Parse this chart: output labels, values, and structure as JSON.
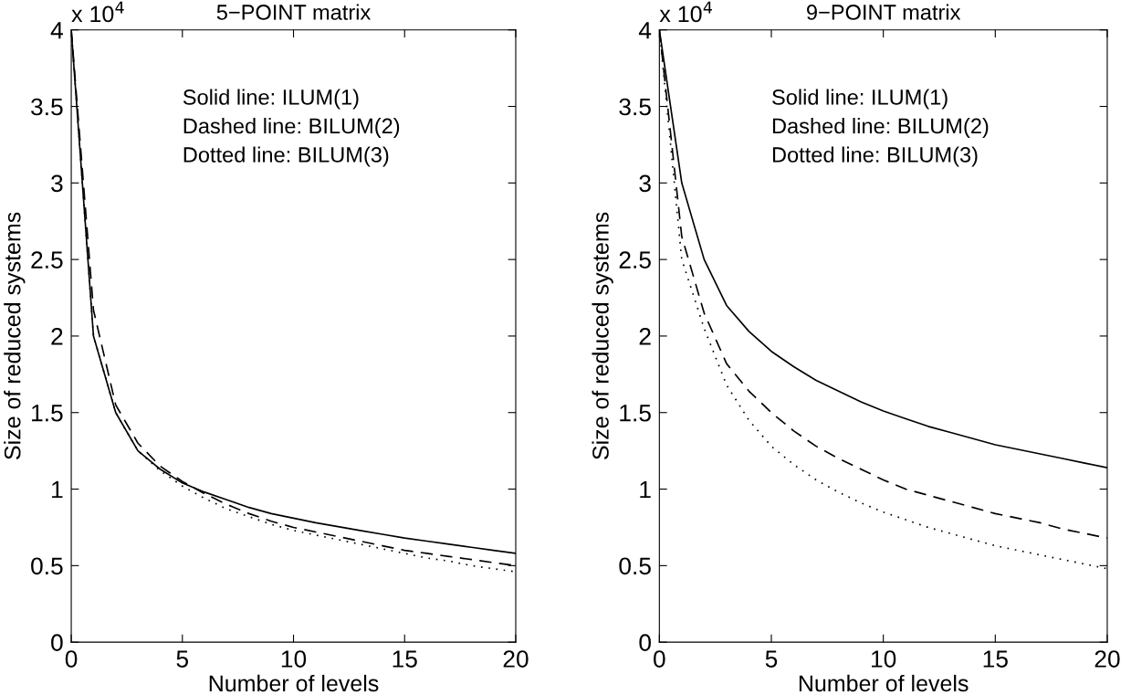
{
  "chart_data": [
    {
      "type": "line",
      "title": "5−POINT matrix",
      "xlabel": "Number of levels",
      "ylabel": "Size of reduced systems",
      "x": [
        0,
        1,
        2,
        3,
        4,
        5,
        6,
        7,
        8,
        9,
        10,
        11,
        12,
        13,
        14,
        15,
        16,
        17,
        18,
        19,
        20
      ],
      "series": [
        {
          "color": "#000000",
          "line_style": "solid",
          "values": [
            4.0,
            2.0,
            1.5,
            1.25,
            1.13,
            1.04,
            0.98,
            0.93,
            0.88,
            0.84,
            0.81,
            0.78,
            0.755,
            0.73,
            0.705,
            0.68,
            0.66,
            0.64,
            0.62,
            0.6,
            0.58
          ]
        },
        {
          "color": "#000000",
          "line_style": "dashed",
          "values": [
            4.0,
            2.17,
            1.55,
            1.3,
            1.15,
            1.05,
            0.97,
            0.9,
            0.84,
            0.79,
            0.75,
            0.72,
            0.69,
            0.66,
            0.63,
            0.6,
            0.58,
            0.56,
            0.54,
            0.52,
            0.5
          ]
        },
        {
          "color": "#000000",
          "line_style": "dotted",
          "values": [
            4.0,
            2.0,
            1.5,
            1.25,
            1.12,
            1.02,
            0.94,
            0.87,
            0.82,
            0.77,
            0.73,
            0.7,
            0.67,
            0.64,
            0.61,
            0.58,
            0.55,
            0.53,
            0.5,
            0.48,
            0.46
          ]
        }
      ],
      "xlim": [
        0,
        20
      ],
      "xticks": [
        0,
        5,
        10,
        15,
        20
      ],
      "ylim": [
        0,
        4
      ],
      "yticks": [
        0,
        0.5,
        1,
        1.5,
        2,
        2.5,
        3,
        3.5,
        4
      ],
      "grid": false,
      "annotations": [
        "x 10$^{4}$",
        "Solid line: ILUM(1)",
        "Dashed line: BILUM(2)",
        "Dotted line: BILUM(3)"
      ]
    },
    {
      "type": "line",
      "title": "9−POINT matrix",
      "xlabel": "Number of levels",
      "ylabel": "Size of reduced systems",
      "x": [
        0,
        1,
        2,
        3,
        4,
        5,
        6,
        7,
        8,
        9,
        10,
        11,
        12,
        13,
        14,
        15,
        16,
        17,
        18,
        19,
        20
      ],
      "series": [
        {
          "color": "#000000",
          "line_style": "solid",
          "values": [
            4.0,
            3.0,
            2.5,
            2.2,
            2.03,
            1.9,
            1.8,
            1.71,
            1.64,
            1.57,
            1.51,
            1.46,
            1.41,
            1.37,
            1.33,
            1.29,
            1.26,
            1.23,
            1.2,
            1.17,
            1.14
          ]
        },
        {
          "color": "#000000",
          "line_style": "dashed",
          "values": [
            4.0,
            2.65,
            2.15,
            1.82,
            1.64,
            1.5,
            1.38,
            1.28,
            1.2,
            1.13,
            1.06,
            1.0,
            0.96,
            0.92,
            0.88,
            0.84,
            0.81,
            0.78,
            0.74,
            0.71,
            0.68
          ]
        },
        {
          "color": "#000000",
          "line_style": "dotted",
          "values": [
            4.0,
            2.5,
            2.05,
            1.68,
            1.45,
            1.28,
            1.16,
            1.06,
            0.98,
            0.91,
            0.85,
            0.8,
            0.75,
            0.71,
            0.67,
            0.63,
            0.6,
            0.57,
            0.54,
            0.51,
            0.48
          ]
        }
      ],
      "xlim": [
        0,
        20
      ],
      "xticks": [
        0,
        5,
        10,
        15,
        20
      ],
      "ylim": [
        0,
        4
      ],
      "yticks": [
        0,
        0.5,
        1,
        1.5,
        2,
        2.5,
        3,
        3.5,
        4
      ],
      "grid": false,
      "annotations": [
        "x 10$^{4}$",
        "Solid line: ILUM(1)",
        "Dashed line: BILUM(2)",
        "Dotted line: BILUM(3)"
      ]
    }
  ]
}
